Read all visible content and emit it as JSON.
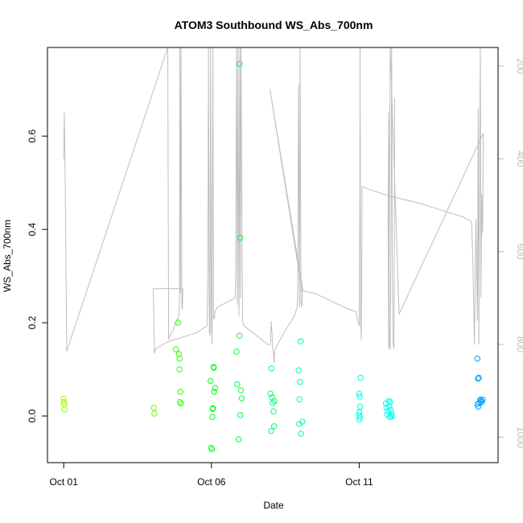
{
  "chart_data": {
    "type": "scatter",
    "title": "ATOM3 Southbound WS_Abs_700nm",
    "xlabel": "Date",
    "ylabel": "WS_Abs_700nm",
    "x_unit": "days",
    "x_ticks": [
      {
        "value": 0,
        "label": "Oct 01"
      },
      {
        "value": 5,
        "label": "Oct 06"
      },
      {
        "value": 10,
        "label": "Oct 11"
      }
    ],
    "xlim": [
      -0.55,
      14.7
    ],
    "ylim": [
      -0.1,
      0.79
    ],
    "y_ticks": [
      0.0,
      0.2,
      0.4,
      0.6
    ],
    "y2_ticks": [
      200,
      400,
      600,
      800,
      1000
    ],
    "y2lim": [
      1055,
      160
    ],
    "y2_color": "#bebebe",
    "grid": false,
    "series": [
      {
        "type": "points",
        "color_scale": "rainbow by date (yellow-green → green → cyan → blue)",
        "points": [
          {
            "x": 0.0,
            "y": 0.037,
            "c": "#99ff00"
          },
          {
            "x": 0.0,
            "y": 0.03,
            "c": "#99ff00"
          },
          {
            "x": 0.02,
            "y": 0.025,
            "c": "#99ff00"
          },
          {
            "x": 0.03,
            "y": 0.014,
            "c": "#99ff00"
          },
          {
            "x": 3.05,
            "y": 0.018,
            "c": "#66ff00"
          },
          {
            "x": 3.07,
            "y": 0.005,
            "c": "#66ff00"
          },
          {
            "x": 3.8,
            "y": 0.143,
            "c": "#33ff00"
          },
          {
            "x": 3.87,
            "y": 0.2,
            "c": "#33ff00"
          },
          {
            "x": 3.9,
            "y": 0.133,
            "c": "#33ff00"
          },
          {
            "x": 3.92,
            "y": 0.123,
            "c": "#33ff00"
          },
          {
            "x": 3.92,
            "y": 0.1,
            "c": "#33ff00"
          },
          {
            "x": 3.93,
            "y": 0.03,
            "c": "#33ff00"
          },
          {
            "x": 3.95,
            "y": 0.052,
            "c": "#33ff00"
          },
          {
            "x": 3.97,
            "y": 0.027,
            "c": "#33ff00"
          },
          {
            "x": 4.97,
            "y": 0.075,
            "c": "#00ff22"
          },
          {
            "x": 4.98,
            "y": -0.068,
            "c": "#00ff22"
          },
          {
            "x": 5.02,
            "y": -0.071,
            "c": "#00ff22"
          },
          {
            "x": 5.03,
            "y": -0.002,
            "c": "#00ff22"
          },
          {
            "x": 5.04,
            "y": 0.015,
            "c": "#00ff22"
          },
          {
            "x": 5.05,
            "y": 0.017,
            "c": "#00ff22"
          },
          {
            "x": 5.07,
            "y": 0.105,
            "c": "#00ff22"
          },
          {
            "x": 5.08,
            "y": 0.103,
            "c": "#00ff22"
          },
          {
            "x": 5.09,
            "y": 0.052,
            "c": "#00ff22"
          },
          {
            "x": 5.12,
            "y": 0.06,
            "c": "#00ff22"
          },
          {
            "x": 5.85,
            "y": 0.138,
            "c": "#00ff44"
          },
          {
            "x": 5.87,
            "y": 0.068,
            "c": "#00ff44"
          },
          {
            "x": 5.92,
            "y": -0.05,
            "c": "#00ff44"
          },
          {
            "x": 5.95,
            "y": 0.755,
            "c": "#00ff44"
          },
          {
            "x": 5.95,
            "y": 0.172,
            "c": "#00ff44"
          },
          {
            "x": 5.97,
            "y": 0.382,
            "c": "#00ff44"
          },
          {
            "x": 5.98,
            "y": 0.002,
            "c": "#00ff44"
          },
          {
            "x": 6.0,
            "y": 0.055,
            "c": "#00ff44"
          },
          {
            "x": 6.02,
            "y": 0.038,
            "c": "#00ff44"
          },
          {
            "x": 7.0,
            "y": 0.048,
            "c": "#00ff77"
          },
          {
            "x": 7.02,
            "y": -0.032,
            "c": "#00ff77"
          },
          {
            "x": 7.03,
            "y": 0.102,
            "c": "#00ff77"
          },
          {
            "x": 7.05,
            "y": 0.04,
            "c": "#00ff77"
          },
          {
            "x": 7.07,
            "y": 0.028,
            "c": "#00ff77"
          },
          {
            "x": 7.1,
            "y": 0.01,
            "c": "#00ff77"
          },
          {
            "x": 7.12,
            "y": -0.022,
            "c": "#00ff77"
          },
          {
            "x": 7.13,
            "y": 0.032,
            "c": "#00ff77"
          },
          {
            "x": 7.95,
            "y": 0.098,
            "c": "#00ff99"
          },
          {
            "x": 7.97,
            "y": -0.017,
            "c": "#00ff99"
          },
          {
            "x": 7.98,
            "y": 0.036,
            "c": "#00ff99"
          },
          {
            "x": 8.0,
            "y": 0.073,
            "c": "#00ff99"
          },
          {
            "x": 8.02,
            "y": 0.16,
            "c": "#00ff99"
          },
          {
            "x": 8.03,
            "y": -0.038,
            "c": "#00ff99"
          },
          {
            "x": 8.08,
            "y": -0.012,
            "c": "#00ff99"
          },
          {
            "x": 10.0,
            "y": 0.048,
            "c": "#00ffdd"
          },
          {
            "x": 10.02,
            "y": 0.042,
            "c": "#00ffdd"
          },
          {
            "x": 10.05,
            "y": 0.082,
            "c": "#00ffdd"
          },
          {
            "x": 10.03,
            "y": 0.02,
            "c": "#00ffdd"
          },
          {
            "x": 10.0,
            "y": 0.008,
            "c": "#00ffdd"
          },
          {
            "x": 10.0,
            "y": 0.002,
            "c": "#00ffdd"
          },
          {
            "x": 10.0,
            "y": -0.008,
            "c": "#00ffdd"
          },
          {
            "x": 10.03,
            "y": -0.003,
            "c": "#00ffdd"
          },
          {
            "x": 10.9,
            "y": 0.027,
            "c": "#00ffee"
          },
          {
            "x": 10.92,
            "y": 0.018,
            "c": "#00ffee"
          },
          {
            "x": 10.95,
            "y": 0.003,
            "c": "#00ffee"
          },
          {
            "x": 10.97,
            "y": 0.01,
            "c": "#00ffee"
          },
          {
            "x": 11.0,
            "y": 0.032,
            "c": "#00ffee"
          },
          {
            "x": 11.02,
            "y": 0.02,
            "c": "#00ffee"
          },
          {
            "x": 11.03,
            "y": -0.002,
            "c": "#00ffee"
          },
          {
            "x": 11.05,
            "y": 0.03,
            "c": "#00ffee"
          },
          {
            "x": 11.07,
            "y": 0.013,
            "c": "#00ffee"
          },
          {
            "x": 11.08,
            "y": 0.0,
            "c": "#00ffee"
          },
          {
            "x": 11.1,
            "y": 0.005,
            "c": "#00ffee"
          },
          {
            "x": 11.1,
            "y": -0.001,
            "c": "#00ffee"
          },
          {
            "x": 14.0,
            "y": 0.123,
            "c": "#0099ff"
          },
          {
            "x": 14.02,
            "y": 0.08,
            "c": "#0099ff"
          },
          {
            "x": 14.05,
            "y": 0.082,
            "c": "#0099ff"
          },
          {
            "x": 14.0,
            "y": 0.025,
            "c": "#0099ff"
          },
          {
            "x": 14.03,
            "y": 0.02,
            "c": "#0099ff"
          },
          {
            "x": 14.07,
            "y": 0.028,
            "c": "#0099ff"
          },
          {
            "x": 14.1,
            "y": 0.035,
            "c": "#0099ff"
          },
          {
            "x": 14.12,
            "y": 0.033,
            "c": "#0099ff"
          },
          {
            "x": 14.15,
            "y": 0.03,
            "c": "#0099ff"
          },
          {
            "x": 14.18,
            "y": 0.035,
            "c": "#0099ff"
          }
        ]
      },
      {
        "type": "line",
        "axis": "y2",
        "color": "#bebebe",
        "points": [
          [
            0.0,
            400
          ],
          [
            0.02,
            300
          ],
          [
            0.04,
            400
          ],
          [
            0.06,
            510
          ],
          [
            0.1,
            815
          ],
          [
            3.52,
            110
          ],
          [
            3.55,
            790
          ],
          [
            3.6,
            780
          ],
          [
            3.7,
            770
          ],
          [
            3.8,
            750
          ],
          [
            3.9,
            740
          ],
          [
            3.92,
            705
          ],
          [
            3.93,
            160
          ],
          [
            3.95,
            690
          ],
          [
            3.97,
            160
          ],
          [
            4.0,
            725
          ],
          [
            4.02,
            720
          ],
          [
            4.03,
            680
          ],
          [
            3.03,
            680
          ],
          [
            3.07,
            820
          ],
          [
            3.1,
            810
          ],
          [
            3.5,
            795
          ],
          [
            4.0,
            785
          ],
          [
            4.5,
            775
          ],
          [
            4.85,
            760
          ],
          [
            4.88,
            650
          ],
          [
            4.9,
            160
          ],
          [
            4.93,
            770
          ],
          [
            4.95,
            780
          ],
          [
            4.97,
            160
          ],
          [
            5.0,
            760
          ],
          [
            5.02,
            800
          ],
          [
            5.05,
            160
          ],
          [
            5.07,
            745
          ],
          [
            5.09,
            745
          ],
          [
            5.12,
            730
          ],
          [
            5.2,
            720
          ],
          [
            5.5,
            710
          ],
          [
            5.8,
            700
          ],
          [
            5.82,
            670
          ],
          [
            5.85,
            160
          ],
          [
            5.88,
            715
          ],
          [
            5.9,
            160
          ],
          [
            5.93,
            740
          ],
          [
            5.96,
            160
          ],
          [
            5.98,
            700
          ],
          [
            6.0,
            160
          ],
          [
            6.05,
            750
          ],
          [
            6.1,
            760
          ],
          [
            6.3,
            770
          ],
          [
            6.6,
            785
          ],
          [
            6.9,
            800
          ],
          [
            7.0,
            800
          ],
          [
            7.02,
            750
          ],
          [
            7.03,
            760
          ],
          [
            7.05,
            775
          ],
          [
            7.07,
            810
          ],
          [
            7.1,
            820
          ],
          [
            7.12,
            840
          ],
          [
            7.15,
            810
          ],
          [
            7.5,
            770
          ],
          [
            7.8,
            740
          ],
          [
            7.9,
            720
          ],
          [
            7.92,
            695
          ],
          [
            7.95,
            240
          ],
          [
            7.98,
            720
          ],
          [
            8.0,
            160
          ],
          [
            8.03,
            705
          ],
          [
            8.05,
            720
          ],
          [
            8.08,
            690
          ],
          [
            6.98,
            250
          ],
          [
            8.1,
            685
          ],
          [
            8.5,
            690
          ],
          [
            9.0,
            705
          ],
          [
            9.5,
            720
          ],
          [
            9.9,
            730
          ],
          [
            9.95,
            750
          ],
          [
            10.0,
            760
          ],
          [
            10.02,
            560
          ],
          [
            10.03,
            160
          ],
          [
            10.05,
            750
          ],
          [
            10.07,
            790
          ],
          [
            10.1,
            460
          ],
          [
            10.3,
            465
          ],
          [
            11.0,
            480
          ],
          [
            12.0,
            495
          ],
          [
            13.0,
            515
          ],
          [
            13.5,
            525
          ],
          [
            13.8,
            535
          ],
          [
            13.85,
            620
          ],
          [
            13.9,
            800
          ],
          [
            13.95,
            530
          ],
          [
            14.0,
            750
          ],
          [
            14.03,
            290
          ],
          [
            14.05,
            800
          ],
          [
            14.08,
            380
          ],
          [
            14.1,
            160
          ],
          [
            14.12,
            700
          ],
          [
            14.15,
            475
          ],
          [
            14.18,
            560
          ],
          [
            14.2,
            345
          ],
          [
            11.35,
            735
          ],
          [
            11.05,
            160
          ],
          [
            11.0,
            810
          ],
          [
            10.98,
            520
          ],
          [
            11.0,
            300
          ],
          [
            11.02,
            800
          ],
          [
            11.05,
            810
          ],
          [
            11.08,
            500
          ],
          [
            11.1,
            160
          ],
          [
            11.12,
            620
          ],
          [
            11.15,
            800
          ],
          [
            11.18,
            810
          ],
          [
            11.2,
            270
          ]
        ]
      }
    ]
  }
}
